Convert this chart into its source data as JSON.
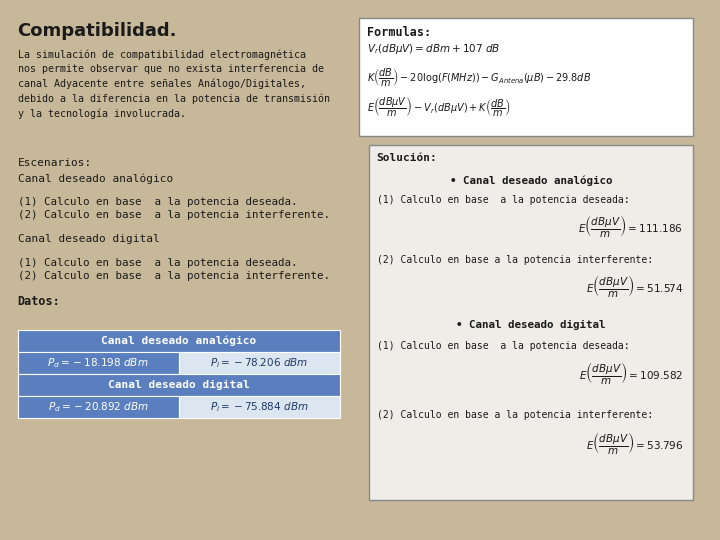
{
  "title": "Compatibilidad.",
  "background_color": "#c8b89a",
  "left_panel": {
    "body_text": "La simulación de compatibilidad electromagnética\nnos permite observar que no exista interferencia de\ncanal Adyacente entre señales Análogo/Digitales,\ndebido a la diferencia en la potencia de transmisión\ny la tecnología involucrada.",
    "escenarios_label": "Escenarios:",
    "canal_analogico": "Canal deseado analógico",
    "calc1_analogico": "(1) Calculo en base  a la potencia deseada.",
    "calc2_analogico": "(2) Calculo en base  a la potencia interferente.",
    "canal_digital": "Canal deseado digital",
    "calc1_digital": "(1) Calculo en base  a la potencia deseada.",
    "calc2_digital": "(2) Calculo en base  a la potencia interferente.",
    "datos_label": "Datos:"
  },
  "table": {
    "header1": "Canal deseado analógico",
    "row1_col1": "$P_d = -18.198\\ dBm$",
    "row1_col2": "$P_i = -78.206\\ dBm$",
    "header2": "Canal deseado digital",
    "row2_col1": "$P_d = -20.892\\ dBm$",
    "row2_col2": "$P_i = -75.884\\ dBm$",
    "header_bg": "#5b7fbe",
    "row_col1_bg": "#5b7fbe",
    "row_col2_bg": "#dce6f1",
    "text_color_header": "#ffffff",
    "text_color_col1": "#ffffff",
    "text_color_col2": "#1f3864"
  },
  "right_panel": {
    "formulas_box_bg": "#ffffff",
    "formulas_title": "Formulas:",
    "formula1": "$V_r(dB\\mu V) = dBm + 107\\ dB$",
    "formula2": "$K\\left(\\dfrac{dB}{m}\\right) - 20\\log(F(MHz)) - G_{Antena}(\\mu B) - 29.8dB$",
    "formula3": "$E\\left(\\dfrac{dB\\mu V}{m}\\right) - V_r(dB\\mu V) + K\\left(\\dfrac{dB}{m}\\right)$",
    "solucion_box_bg": "#f2f2f2",
    "solucion_title": "Solución:",
    "sol_canal_analogico": "Canal deseado analógico",
    "sol_calc1a": "(1) Calculo en base  a la potencia deseada:",
    "sol_eq1a": "$E\\left(\\dfrac{dB\\mu V}{m}\\right) = 111.186$",
    "sol_calc2a": "(2) Calculo en base a la potencia interferente:",
    "sol_eq2a": "$E\\left(\\dfrac{dB\\mu V}{m}\\right) = 51.574$",
    "sol_canal_digital": "Canal deseado digital",
    "sol_calc1d": "(1) Calculo en base  a la potencia deseada:",
    "sol_eq1d": "$E\\left(\\dfrac{dB\\mu V}{m}\\right) = 109.582$",
    "sol_calc2d": "(2) Calculo en base a la potencia interferente:",
    "sol_eq2d": "$E\\left(\\dfrac{dB\\mu V}{m}\\right) = 53.796$"
  }
}
